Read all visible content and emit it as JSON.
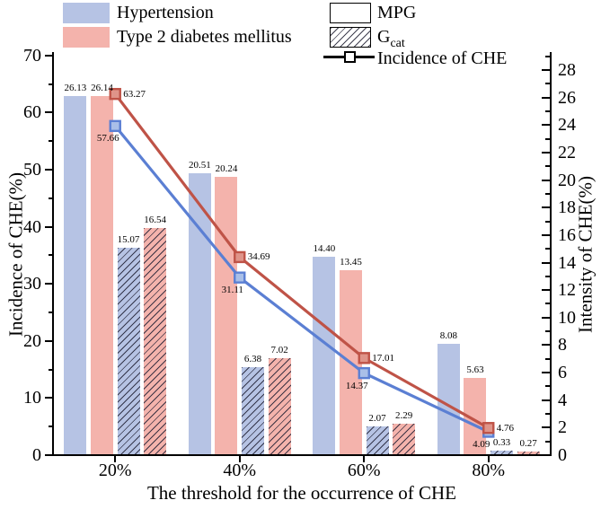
{
  "legend_left": {
    "items": [
      {
        "label": "Hypertension",
        "color": "#b6c3e4"
      },
      {
        "label": "Type 2 diabetes mellitus",
        "color": "#f4b3ac"
      }
    ]
  },
  "legend_right": {
    "mpg_label": "MPG",
    "gcat_base": "G",
    "gcat_sub": "cat",
    "incidence_label": "Incidence of CHE"
  },
  "chart_data": {
    "type": "bar+line",
    "categories": [
      "20%",
      "40%",
      "60%",
      "80%"
    ],
    "x_axis": {
      "title": "The threshold for the occurrence of CHE"
    },
    "left_axis": {
      "title": "Incidence of CHE(%)",
      "min": 0,
      "max": 70,
      "major_ticks": [
        0,
        10,
        20,
        30,
        40,
        50,
        60,
        70
      ],
      "minor_ticks": [
        5,
        15,
        25,
        35,
        45,
        55,
        65
      ]
    },
    "right_axis": {
      "title": "Intensity of CHE(%)",
      "min": 0,
      "max": 28,
      "major_ticks": [
        0,
        2,
        4,
        6,
        8,
        10,
        12,
        14,
        16,
        18,
        20,
        22,
        24,
        26,
        28
      ],
      "minor_ticks": [
        1,
        3,
        5,
        7,
        9,
        11,
        13,
        15,
        17,
        19,
        21,
        23,
        25,
        27,
        29
      ]
    },
    "bar_series": [
      {
        "name": "Hypertension MPG",
        "disease": "Hypertension",
        "measure": "MPG",
        "axis": "right",
        "fill": "#b6c3e4",
        "hatched": false,
        "values": [
          26.13,
          20.51,
          14.4,
          8.08
        ],
        "labels": [
          "26.13",
          "20.51",
          "14.40",
          "8.08"
        ]
      },
      {
        "name": "Type 2 diabetes mellitus MPG",
        "disease": "Type 2 diabetes mellitus",
        "measure": "MPG",
        "axis": "right",
        "fill": "#f4b3ac",
        "hatched": false,
        "values": [
          26.14,
          20.24,
          13.45,
          5.63
        ],
        "labels": [
          "26.14",
          "20.24",
          "13.45",
          "5.63"
        ]
      },
      {
        "name": "Hypertension Gcat",
        "disease": "Hypertension",
        "measure": "Gcat",
        "axis": "right",
        "fill": "#b6c3e4",
        "hatched": true,
        "values": [
          15.07,
          6.38,
          2.07,
          0.33
        ],
        "labels": [
          "15.07",
          "6.38",
          "2.07",
          "0.33"
        ]
      },
      {
        "name": "Type 2 diabetes mellitus Gcat",
        "disease": "Type 2 diabetes mellitus",
        "measure": "Gcat",
        "axis": "right",
        "fill": "#f4b3ac",
        "hatched": true,
        "values": [
          16.54,
          7.02,
          2.29,
          0.27
        ],
        "labels": [
          "16.54",
          "7.02",
          "2.29",
          "0.27"
        ]
      }
    ],
    "line_series": [
      {
        "name": "Incidence of CHE (Hypertension)",
        "axis": "left",
        "stroke": "#5b7fd3",
        "marker_fill": "#a9bfe8",
        "label_side": "below-left",
        "values": [
          57.66,
          31.11,
          14.37,
          4.09
        ],
        "labels": [
          "57.66",
          "31.11",
          "14.37",
          "4.09"
        ]
      },
      {
        "name": "Incidence of CHE (Type 2 diabetes mellitus)",
        "axis": "left",
        "stroke": "#bf5347",
        "marker_fill": "#df9489",
        "label_side": "right",
        "values": [
          63.27,
          34.69,
          17.01,
          4.76
        ],
        "labels": [
          "63.27",
          "34.69",
          "17.01",
          "4.76"
        ]
      }
    ],
    "legend_position": "top",
    "grid": false
  },
  "colors": {
    "bar_blue": "#b6c3e4",
    "bar_red": "#f4b3ac",
    "line_blue": "#5b7fd3",
    "line_red": "#bf5347",
    "axis": "#000000"
  }
}
